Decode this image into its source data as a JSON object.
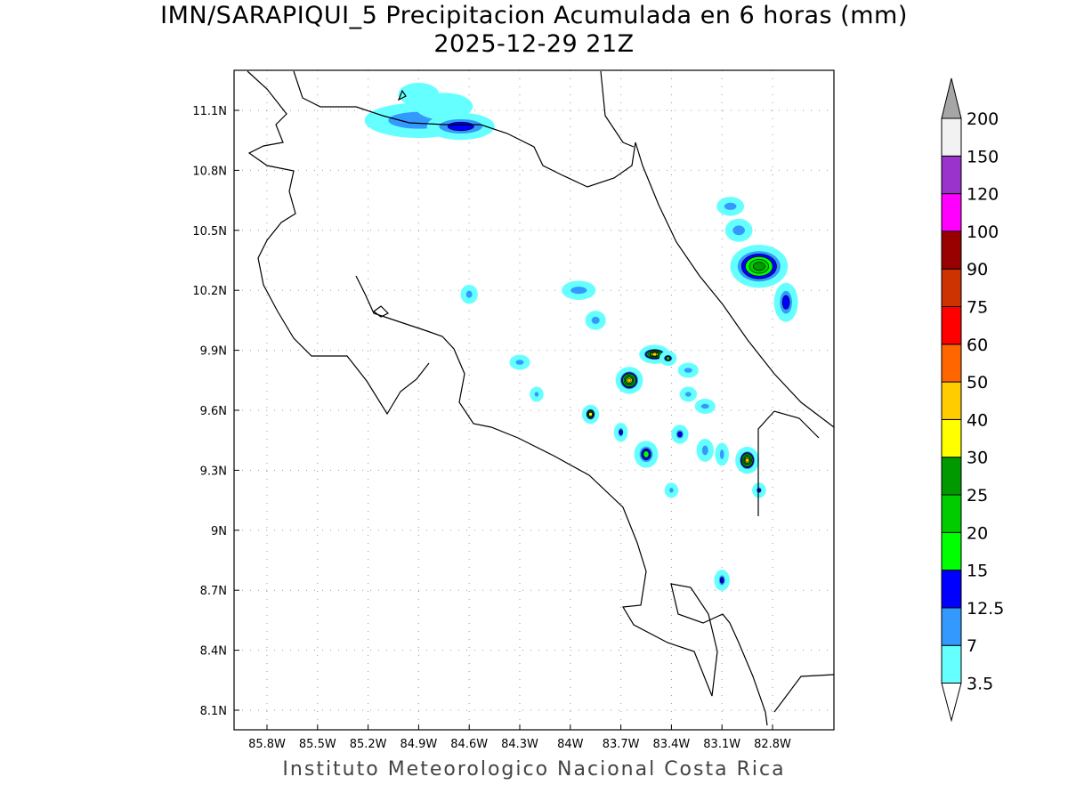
{
  "title": "IMN/SARAPIQUI_5 Precipitacion Acumulada en 6 horas (mm)",
  "subtitle": "2025-12-29 21Z",
  "footer": "Instituto Meteorologico Nacional Costa Rica",
  "lon_labels": [
    "85.8W",
    "85.5W",
    "85.2W",
    "84.9W",
    "84.6W",
    "84.3W",
    "84W",
    "83.7W",
    "83.4W",
    "83.1W",
    "82.8W"
  ],
  "lat_labels": [
    "11.1N",
    "10.8N",
    "10.5N",
    "10.2N",
    "9.9N",
    "9.6N",
    "9.3N",
    "9N",
    "8.7N",
    "8.4N",
    "8.1N"
  ],
  "colorbar": {
    "labels": [
      "3.5",
      "7",
      "12.5",
      "15",
      "20",
      "25",
      "30",
      "40",
      "50",
      "60",
      "75",
      "90",
      "100",
      "120",
      "150",
      "200"
    ],
    "colors": [
      "#66ffff",
      "#3399ff",
      "#0000ff",
      "#00ff00",
      "#00cc00",
      "#009900",
      "#ffff00",
      "#ffcc00",
      "#ff6600",
      "#ff0000",
      "#cc3300",
      "#990000",
      "#ff00ff",
      "#9933cc",
      "#f2f2f2"
    ],
    "over_color": "#a6a6a6",
    "under_color": "#ffffff"
  },
  "precip_cells": [
    {
      "lon": -84.9,
      "lat": 11.05,
      "max": 7,
      "rx": 0.3,
      "ry": 0.07
    },
    {
      "lon": -84.75,
      "lat": 11.12,
      "max": 3.5,
      "rx": 0.15,
      "ry": 0.05
    },
    {
      "lon": -84.65,
      "lat": 11.02,
      "max": 12.5,
      "rx": 0.18,
      "ry": 0.05
    },
    {
      "lon": -84.9,
      "lat": 11.18,
      "max": 3.5,
      "rx": 0.1,
      "ry": 0.04
    },
    {
      "lon": -83.05,
      "lat": 10.62,
      "max": 7,
      "rx": 0.06,
      "ry": 0.03
    },
    {
      "lon": -83.0,
      "lat": 10.5,
      "max": 7,
      "rx": 0.06,
      "ry": 0.04
    },
    {
      "lon": -82.88,
      "lat": 10.32,
      "max": 25,
      "rx": 0.15,
      "ry": 0.09
    },
    {
      "lon": -82.72,
      "lat": 10.14,
      "max": 12.5,
      "rx": 0.05,
      "ry": 0.08
    },
    {
      "lon": -84.6,
      "lat": 10.18,
      "max": 7,
      "rx": 0.03,
      "ry": 0.03
    },
    {
      "lon": -83.95,
      "lat": 10.2,
      "max": 7,
      "rx": 0.08,
      "ry": 0.03
    },
    {
      "lon": -83.85,
      "lat": 10.05,
      "max": 7,
      "rx": 0.04,
      "ry": 0.03
    },
    {
      "lon": -84.3,
      "lat": 9.84,
      "max": 7,
      "rx": 0.04,
      "ry": 0.02
    },
    {
      "lon": -83.5,
      "lat": 9.88,
      "max": 40,
      "rx": 0.07,
      "ry": 0.03
    },
    {
      "lon": -83.42,
      "lat": 9.86,
      "max": 20,
      "rx": 0.03,
      "ry": 0.02
    },
    {
      "lon": -83.65,
      "lat": 9.75,
      "max": 40,
      "rx": 0.06,
      "ry": 0.05
    },
    {
      "lon": -83.3,
      "lat": 9.8,
      "max": 7,
      "rx": 0.04,
      "ry": 0.02
    },
    {
      "lon": -83.88,
      "lat": 9.58,
      "max": 30,
      "rx": 0.03,
      "ry": 0.03
    },
    {
      "lon": -84.2,
      "lat": 9.68,
      "max": 7,
      "rx": 0.02,
      "ry": 0.02
    },
    {
      "lon": -83.55,
      "lat": 9.38,
      "max": 15,
      "rx": 0.05,
      "ry": 0.05
    },
    {
      "lon": -83.7,
      "lat": 9.49,
      "max": 12.5,
      "rx": 0.02,
      "ry": 0.03
    },
    {
      "lon": -83.35,
      "lat": 9.48,
      "max": 12.5,
      "rx": 0.03,
      "ry": 0.03
    },
    {
      "lon": -83.2,
      "lat": 9.4,
      "max": 7,
      "rx": 0.03,
      "ry": 0.04
    },
    {
      "lon": -83.1,
      "lat": 9.38,
      "max": 7,
      "rx": 0.02,
      "ry": 0.04
    },
    {
      "lon": -82.95,
      "lat": 9.35,
      "max": 40,
      "rx": 0.05,
      "ry": 0.05
    },
    {
      "lon": -82.88,
      "lat": 9.2,
      "max": 12.5,
      "rx": 0.02,
      "ry": 0.02
    },
    {
      "lon": -83.4,
      "lat": 9.2,
      "max": 7,
      "rx": 0.02,
      "ry": 0.02
    },
    {
      "lon": -83.1,
      "lat": 8.75,
      "max": 12.5,
      "rx": 0.025,
      "ry": 0.035
    },
    {
      "lon": -83.3,
      "lat": 9.68,
      "max": 7,
      "rx": 0.03,
      "ry": 0.02
    },
    {
      "lon": -83.2,
      "lat": 9.62,
      "max": 7,
      "rx": 0.04,
      "ry": 0.02
    }
  ]
}
